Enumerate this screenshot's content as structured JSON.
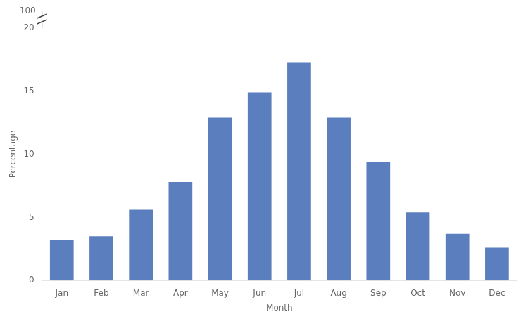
{
  "chart_data": {
    "type": "bar",
    "categories": [
      "Jan",
      "Feb",
      "Mar",
      "Apr",
      "May",
      "Jun",
      "Jul",
      "Aug",
      "Sep",
      "Oct",
      "Nov",
      "Dec"
    ],
    "values": [
      3.2,
      3.5,
      5.6,
      7.8,
      12.9,
      14.9,
      17.3,
      12.9,
      9.4,
      5.4,
      3.7,
      2.6
    ],
    "color": "#5b7fbe",
    "xlabel": "Month",
    "ylabel": "Percentage",
    "ylim": [
      0,
      20
    ],
    "yticks": [
      0,
      5,
      10,
      15,
      20
    ],
    "grid": false,
    "annotations": [
      {
        "text": "100"
      }
    ]
  }
}
